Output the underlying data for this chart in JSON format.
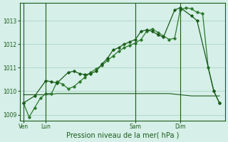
{
  "background_color": "#d6efe8",
  "grid_color": "#aad4c8",
  "line_color_dark": "#1a5c1a",
  "line_color_medium": "#2d7a2d",
  "xlabel": "Pression niveau de la mer( hPa )",
  "ylim": [
    1008.75,
    1013.75
  ],
  "yticks": [
    1009,
    1010,
    1011,
    1012,
    1013
  ],
  "xtick_labels": [
    "Ven",
    "Lun",
    "Sam",
    "Dim"
  ],
  "xtick_positions": [
    0,
    24,
    120,
    168
  ],
  "vline_positions": [
    0,
    24,
    120,
    168
  ],
  "xlim": [
    -4,
    216
  ],
  "series1_x": [
    0,
    6,
    12,
    18,
    24,
    30,
    36,
    42,
    48,
    54,
    60,
    66,
    72,
    78,
    84,
    90,
    96,
    102,
    108,
    114,
    120,
    126,
    132,
    138,
    144,
    150,
    156,
    162,
    168,
    174,
    180,
    186,
    192,
    198,
    204,
    210
  ],
  "series1_y": [
    1009.5,
    1008.9,
    1009.3,
    1009.7,
    1009.9,
    1009.9,
    1010.4,
    1010.3,
    1010.1,
    1010.2,
    1010.4,
    1010.6,
    1010.8,
    1010.95,
    1011.1,
    1011.3,
    1011.5,
    1011.7,
    1011.85,
    1011.95,
    1012.05,
    1012.2,
    1012.55,
    1012.65,
    1012.5,
    1012.35,
    1012.2,
    1012.25,
    1013.45,
    1013.55,
    1013.5,
    1013.35,
    1013.3,
    1011.0,
    1010.0,
    1009.5
  ],
  "series2_x": [
    0,
    12,
    24,
    30,
    36,
    48,
    54,
    60,
    66,
    72,
    78,
    84,
    90,
    96,
    102,
    108,
    114,
    120,
    126,
    132,
    138,
    144,
    150,
    162,
    168,
    180,
    186,
    204,
    210
  ],
  "series2_y": [
    1009.5,
    1009.8,
    1010.45,
    1010.4,
    1010.35,
    1010.8,
    1010.85,
    1010.75,
    1010.7,
    1010.75,
    1010.85,
    1011.15,
    1011.4,
    1011.75,
    1011.85,
    1012.0,
    1012.1,
    1012.2,
    1012.55,
    1012.6,
    1012.55,
    1012.4,
    1012.3,
    1013.45,
    1013.55,
    1013.2,
    1013.0,
    1010.0,
    1009.5
  ],
  "series3_x": [
    0,
    12,
    24,
    36,
    48,
    60,
    72,
    84,
    96,
    108,
    120,
    132,
    144,
    156,
    168,
    180,
    192,
    204,
    210
  ],
  "series3_y": [
    1009.85,
    1009.85,
    1009.85,
    1009.9,
    1009.9,
    1009.9,
    1009.9,
    1009.9,
    1009.9,
    1009.9,
    1009.9,
    1009.9,
    1009.9,
    1009.9,
    1009.85,
    1009.8,
    1009.8,
    1009.8,
    1009.8
  ]
}
